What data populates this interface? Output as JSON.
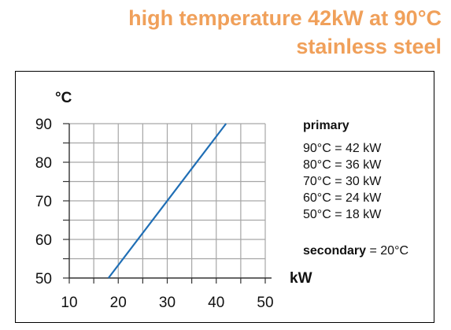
{
  "header": {
    "title_line1": "high temperature 42kW at 90°C",
    "title_line2": "stainless steel"
  },
  "colors": {
    "title": "#f0a05a",
    "series": "#1f6eb5",
    "grid": "#a6a6a6"
  },
  "chart_data": {
    "type": "line",
    "ylabel": "°C",
    "xlabel": "kW",
    "xlim": [
      10,
      50
    ],
    "ylim": [
      50,
      90
    ],
    "x_ticks": [
      10,
      20,
      30,
      40,
      50
    ],
    "y_ticks": [
      50,
      60,
      70,
      80,
      90
    ],
    "x_minor_step": 5,
    "y_minor_step": 5,
    "grid": true,
    "series": [
      {
        "x": [
          18,
          42
        ],
        "y": [
          50,
          90
        ]
      }
    ]
  },
  "legend": {
    "heading": "primary",
    "entries": [
      "90°C = 42 kW",
      "80°C = 36 kW",
      "70°C = 30 kW",
      "60°C = 24 kW",
      "50°C = 18 kW"
    ],
    "secondary_label": "secondary",
    "secondary_value": " = 20°C"
  }
}
